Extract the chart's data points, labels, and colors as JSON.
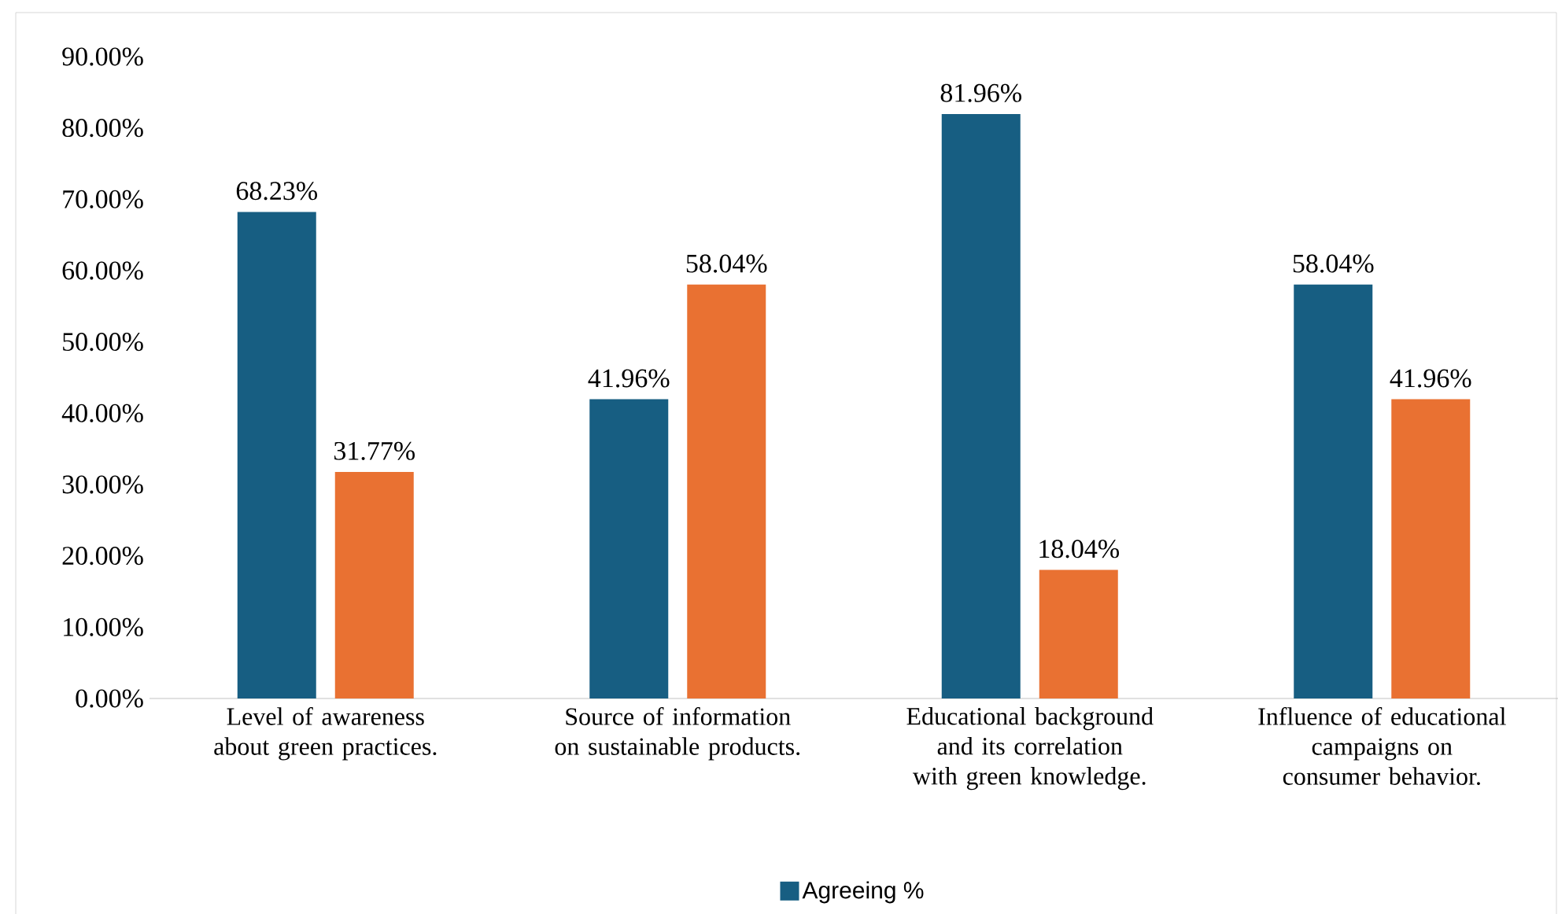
{
  "chart_data": {
    "type": "bar",
    "categories": [
      "Level of awareness about green practices.",
      "Source of information on sustainable products.",
      "Educational background and its correlation with green knowledge.",
      "Influence of educational campaigns on consumer behavior."
    ],
    "series": [
      {
        "name": "Agreeing %",
        "color": "#175e82",
        "values": [
          68.23,
          41.96,
          81.96,
          58.04
        ],
        "value_labels": [
          "68.23%",
          "41.96%",
          "81.96%",
          "58.04%"
        ]
      },
      {
        "color": "#e97132",
        "values": [
          31.77,
          58.04,
          18.04,
          41.96
        ],
        "value_labels": [
          "31.77%",
          "58.04%",
          "18.04%",
          "41.96%"
        ]
      }
    ],
    "ylim": [
      0,
      90
    ],
    "yticks": [
      {
        "value": 0,
        "label": "0.00%"
      },
      {
        "value": 10,
        "label": "10.00%"
      },
      {
        "value": 20,
        "label": "20.00%"
      },
      {
        "value": 30,
        "label": "30.00%"
      },
      {
        "value": 40,
        "label": "40.00%"
      },
      {
        "value": 50,
        "label": "50.00%"
      },
      {
        "value": 60,
        "label": "60.00%"
      },
      {
        "value": 70,
        "label": "70.00%"
      },
      {
        "value": 80,
        "label": "80.00%"
      },
      {
        "value": 90,
        "label": "90.00%"
      }
    ],
    "grid": false,
    "legend": "bottom"
  }
}
